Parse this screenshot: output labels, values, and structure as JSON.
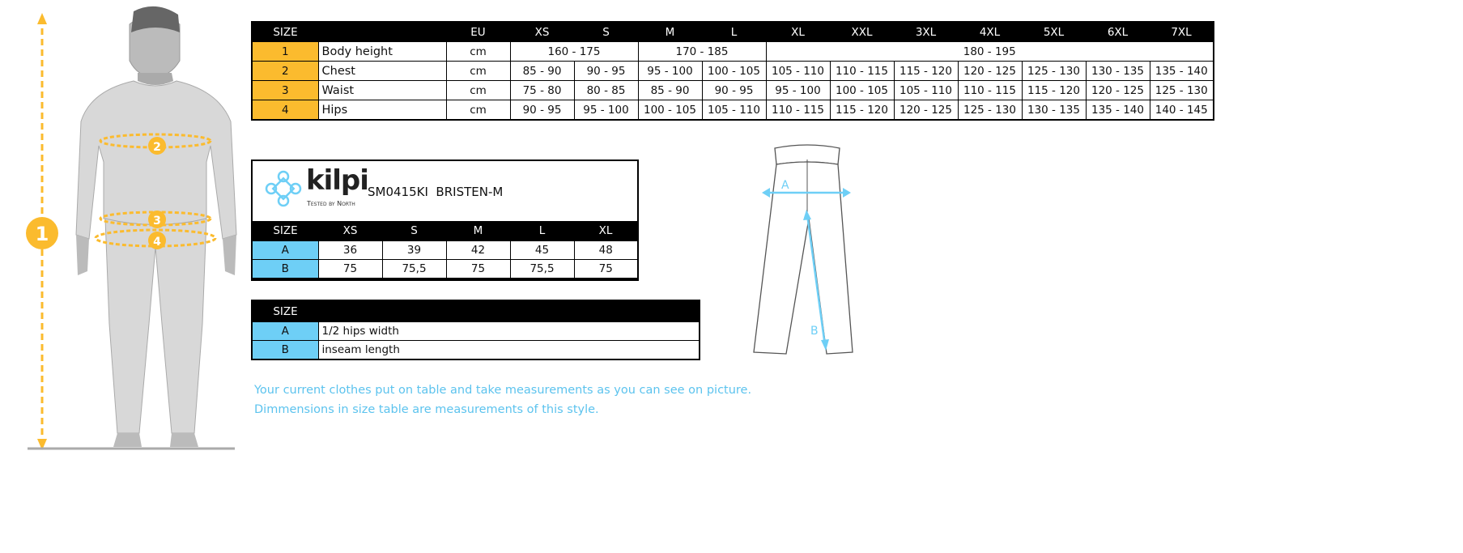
{
  "colors": {
    "orange": "#fbbb2e",
    "blue": "#6ecff6",
    "note_text": "#5cc3ee"
  },
  "body_figure": {
    "markers": [
      "1",
      "2",
      "3",
      "4"
    ]
  },
  "size_table": {
    "headers": [
      "SIZE",
      "",
      "EU",
      "XS",
      "S",
      "M",
      "L",
      "XL",
      "XXL",
      "3XL",
      "4XL",
      "5XL",
      "6XL",
      "7XL"
    ],
    "body_height": {
      "num": "1",
      "label": "Body height",
      "unit": "cm",
      "ranges": [
        "160 - 175",
        "170 - 185",
        "180 - 195"
      ]
    },
    "rows": [
      {
        "num": "2",
        "label": "Chest",
        "unit": "cm",
        "values": [
          "85 - 90",
          "90 - 95",
          "95 - 100",
          "100 - 105",
          "105 - 110",
          "110 - 115",
          "115 - 120",
          "120 - 125",
          "125 - 130",
          "130 - 135",
          "135 - 140"
        ]
      },
      {
        "num": "3",
        "label": "Waist",
        "unit": "cm",
        "values": [
          "75 - 80",
          "80 - 85",
          "85 - 90",
          "90 - 95",
          "95 - 100",
          "100 - 105",
          "105 - 110",
          "110 - 115",
          "115 - 120",
          "120 - 125",
          "125 - 130"
        ]
      },
      {
        "num": "4",
        "label": "Hips",
        "unit": "cm",
        "values": [
          "90 - 95",
          "95 - 100",
          "100 - 105",
          "105 - 110",
          "110 - 115",
          "115 - 120",
          "120 - 125",
          "125 - 130",
          "130 - 135",
          "135 - 140",
          "140 - 145"
        ]
      }
    ]
  },
  "product": {
    "brand": "kilpi",
    "tagline": "Tested by North",
    "title": "SM0415KI  BRISTEN-M",
    "headers": [
      "SIZE",
      "XS",
      "S",
      "M",
      "L",
      "XL"
    ],
    "rows": [
      {
        "label": "A",
        "values": [
          "36",
          "39",
          "42",
          "45",
          "48"
        ]
      },
      {
        "label": "B",
        "values": [
          "75",
          "75,5",
          "75",
          "75,5",
          "75"
        ]
      }
    ]
  },
  "legend": {
    "header": "SIZE",
    "rows": [
      {
        "label": "A",
        "desc": "1/2 hips width"
      },
      {
        "label": "B",
        "desc": "inseam length"
      }
    ]
  },
  "pants_figure": {
    "labels": [
      "A",
      "B"
    ]
  },
  "notes": [
    "Your current clothes put on table and take measurements as you can see on picture.",
    "Dimmensions in size table are measurements of this style."
  ]
}
